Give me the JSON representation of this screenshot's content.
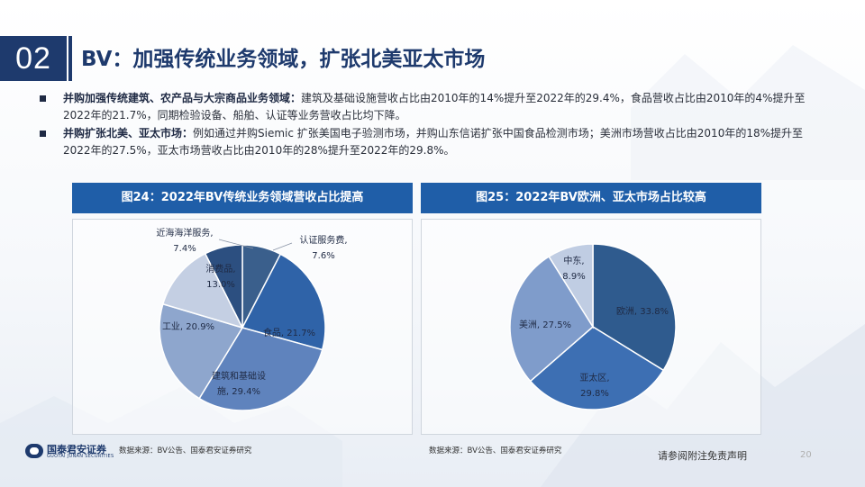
{
  "header": {
    "section_number": "02",
    "title": "BV：加强传统业务领域，扩张北美亚太市场"
  },
  "bullets": [
    {
      "bold": "并购加强传统建筑、农产品与大宗商品业务领域：",
      "text": "建筑及基础设施营收占比由2010年的14%提升至2022年的29.4%，食品营收占比由2010年的4%提升至2022年的21.7%，同期检验设备、船舶、认证等业务营收占比均下降。"
    },
    {
      "bold": "并购扩张北美、亚太市场：",
      "text": "例如通过并购Siemic 扩张美国电子验测市场，并购山东信诺扩张中国食品检测市场；美洲市场营收占比由2010年的18%提升至2022年的27.5%，亚太市场营收占比由2010年的28%提升至2022年的29.8%。"
    }
  ],
  "chart_data": [
    {
      "type": "pie",
      "title": "图24：2022年BV传统业务领域营收占比提高",
      "slices": [
        {
          "label": "认证服务费",
          "value": 7.6,
          "value_label": "7.6%",
          "color": "#3a5f8c"
        },
        {
          "label": "食品",
          "value": 21.7,
          "value_label": "21.7%",
          "color": "#2f63a8"
        },
        {
          "label": "建筑和基础设施",
          "value": 29.4,
          "value_label": "29.4%",
          "color": "#5f83bd"
        },
        {
          "label": "工业",
          "value": 20.9,
          "value_label": "20.9%",
          "color": "#8ea6cd"
        },
        {
          "label": "消费品",
          "value": 13.0,
          "value_label": "13.0%",
          "color": "#c4cfe3"
        },
        {
          "label": "近海海洋服务",
          "value": 7.4,
          "value_label": "7.4%",
          "color": "#2c4f80"
        }
      ],
      "labels": [
        {
          "lines": [
            "认证服务费,",
            "7.6%"
          ]
        },
        {
          "lines": [
            "食品, 21.7%"
          ]
        },
        {
          "lines": [
            "建筑和基础设",
            "施, 29.4%"
          ]
        },
        {
          "lines": [
            "工业, 20.9%"
          ]
        },
        {
          "lines": [
            "消费品,",
            "13.0%"
          ]
        },
        {
          "lines": [
            "近海海洋服务,",
            "7.4%"
          ]
        }
      ]
    },
    {
      "type": "pie",
      "title": "图25：2022年BV欧洲、亚太市场占比较高",
      "slices": [
        {
          "label": "欧洲",
          "value": 33.8,
          "value_label": "33.8%",
          "color": "#2f5b8e"
        },
        {
          "label": "亚太区",
          "value": 29.8,
          "value_label": "29.8%",
          "color": "#3d6fb3"
        },
        {
          "label": "美洲",
          "value": 27.5,
          "value_label": "27.5%",
          "color": "#7f9ccb"
        },
        {
          "label": "中东",
          "value": 8.9,
          "value_label": "8.9%",
          "color": "#c0cde3"
        }
      ],
      "labels": [
        {
          "lines": [
            "欧洲, 33.8%"
          ]
        },
        {
          "lines": [
            "亚太区,",
            "29.8%"
          ]
        },
        {
          "lines": [
            "美洲, 27.5%"
          ]
        },
        {
          "lines": [
            "中东,",
            "8.9%"
          ]
        }
      ]
    }
  ],
  "sources": {
    "left": "数据来源：BV公告、国泰君安证券研究",
    "right": "数据来源：BV公告、国泰君安证券研究"
  },
  "footer": {
    "logo_cn": "国泰君安证券",
    "logo_en": "GUOTAI JUNAN SECURITIES",
    "disclaimer": "请参阅附注免责声明",
    "page_number": "20"
  }
}
